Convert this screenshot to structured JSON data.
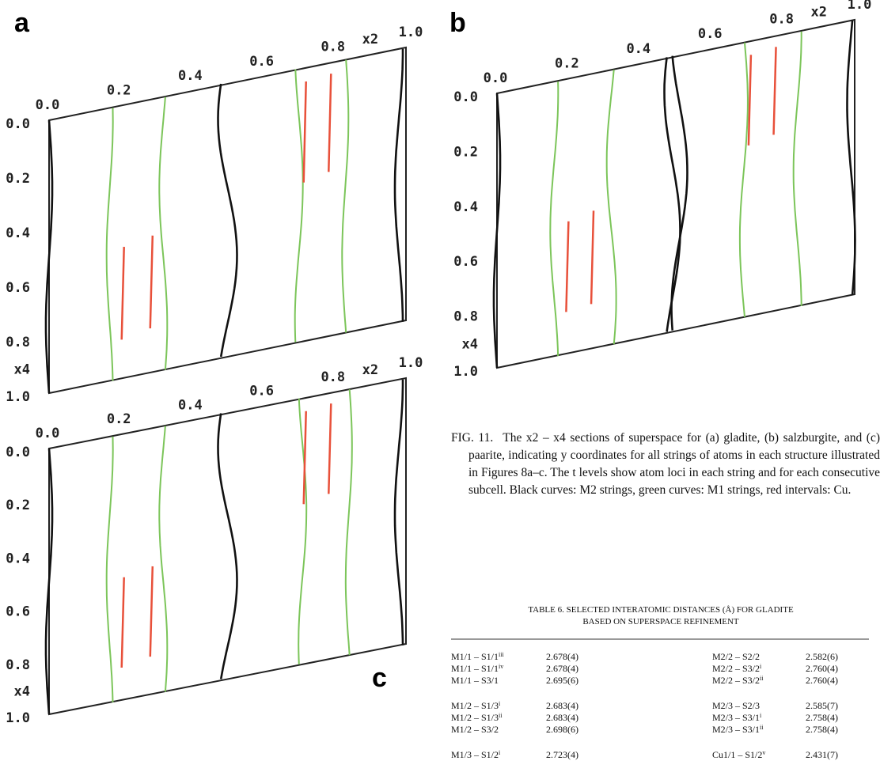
{
  "figures": [
    {
      "label": "a",
      "x_ticks": [
        "0.0",
        "0.2",
        "0.4",
        "0.6",
        "0.8",
        "1.0"
      ],
      "x_axis": "x2",
      "y_ticks": [
        "0.0",
        "0.2",
        "0.4",
        "0.6",
        "0.8",
        "1.0"
      ],
      "y_axis": "x4"
    },
    {
      "label": "b",
      "x_ticks": [
        "0.0",
        "0.2",
        "0.4",
        "0.6",
        "0.8",
        "1.0"
      ],
      "x_axis": "x2",
      "y_ticks": [
        "0.0",
        "0.2",
        "0.4",
        "0.6",
        "0.8",
        "1.0"
      ],
      "y_axis": "x4"
    },
    {
      "label": "c",
      "x_ticks": [
        "0.0",
        "0.2",
        "0.4",
        "0.6",
        "0.8",
        "1.0"
      ],
      "x_axis": "x2",
      "y_ticks": [
        "0.0",
        "0.2",
        "0.4",
        "0.6",
        "0.8",
        "1.0"
      ],
      "y_axis": "x4"
    }
  ],
  "caption": {
    "label": "FIG. 11.",
    "text": "The x2 – x4 sections of superspace for (a) gladite, (b) salzburgite, and (c) paarite, indicating y coordinates for all strings of atoms in each structure illustrated in Figures 8a–c. The t levels show atom loci in each string and for each consecutive subcell. Black curves: M2 strings, green curves: M1 strings, red intervals: Cu."
  },
  "table": {
    "title": "TABLE 6. SELECTED INTERATOMIC DISTANCES (Å) FOR GLADITE",
    "subtitle": "BASED ON SUPERSPACE REFINEMENT",
    "groups": [
      [
        [
          "M1/1 – S1/1",
          "iii",
          "2.678(4)",
          "M2/2 – S2/2",
          "",
          "2.582(6)"
        ],
        [
          "M1/1 – S1/1",
          "iv",
          "2.678(4)",
          "M2/2 – S3/2",
          "i",
          "2.760(4)"
        ],
        [
          "M1/1 – S3/1",
          "",
          "2.695(6)",
          "M2/2 – S3/2",
          "ii",
          "2.760(4)"
        ]
      ],
      [
        [
          "M1/2 – S1/3",
          "i",
          "2.683(4)",
          "M2/3 – S2/3",
          "",
          "2.585(7)"
        ],
        [
          "M1/2 – S1/3",
          "ii",
          "2.683(4)",
          "M2/3 – S3/1",
          "i",
          "2.758(4)"
        ],
        [
          "M1/2 – S3/2",
          "",
          "2.698(6)",
          "M2/3 – S3/1",
          "ii",
          "2.758(4)"
        ]
      ],
      [
        [
          "M1/3 – S1/2",
          "i",
          "2.723(4)",
          "Cu1/1 – S1/2",
          "v",
          "2.431(7)"
        ]
      ]
    ]
  }
}
